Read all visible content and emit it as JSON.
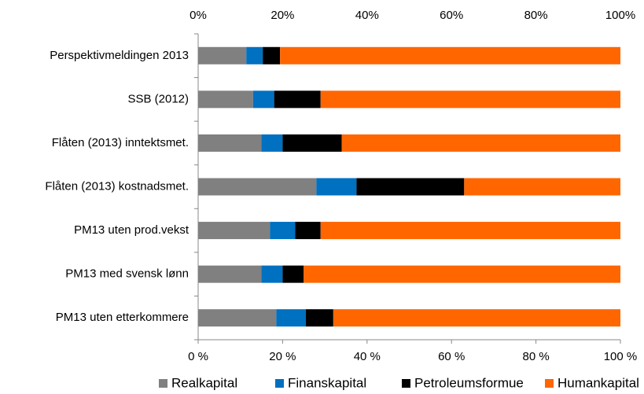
{
  "chart_data": {
    "type": "stacked_barh",
    "categories": [
      "Perspektivmeldingen 2013",
      "SSB (2012)",
      "Flåten (2013) inntektsmet.",
      "Flåten (2013) kostnadsmet.",
      "PM13 uten prod.vekst",
      "PM13 med svensk lønn",
      "PM13 uten etterkommere"
    ],
    "series": [
      {
        "name": "Realkapital",
        "color": "#808080",
        "values": [
          11.4,
          13,
          15,
          28,
          17,
          15,
          18.5
        ]
      },
      {
        "name": "Finanskapital",
        "color": "#0070c0",
        "values": [
          3.9,
          5,
          5,
          9.5,
          6,
          5,
          7
        ]
      },
      {
        "name": "Petroleumsformue",
        "color": "#000000",
        "values": [
          4.1,
          11,
          14,
          25.5,
          6,
          5,
          6.5
        ]
      },
      {
        "name": "Humankapital",
        "color": "#ff6600",
        "values": [
          80.6,
          71,
          66,
          37,
          71,
          75,
          68
        ]
      }
    ],
    "xlim": [
      0,
      100
    ],
    "xticks": [
      {
        "value": 0,
        "label": "0 %"
      },
      {
        "value": 20,
        "label": "20 %"
      },
      {
        "value": 40,
        "label": "40 %"
      },
      {
        "value": 60,
        "label": "60 %"
      },
      {
        "value": 80,
        "label": "80 %"
      },
      {
        "value": 100,
        "label": "100 %"
      }
    ],
    "xticks_top": [
      {
        "value": 0,
        "label": "0%"
      },
      {
        "value": 20,
        "label": "20%"
      },
      {
        "value": 40,
        "label": "40%"
      },
      {
        "value": 60,
        "label": "60%"
      },
      {
        "value": 80,
        "label": "80%"
      },
      {
        "value": 100,
        "label": "100%"
      }
    ],
    "legend": "bottom"
  }
}
